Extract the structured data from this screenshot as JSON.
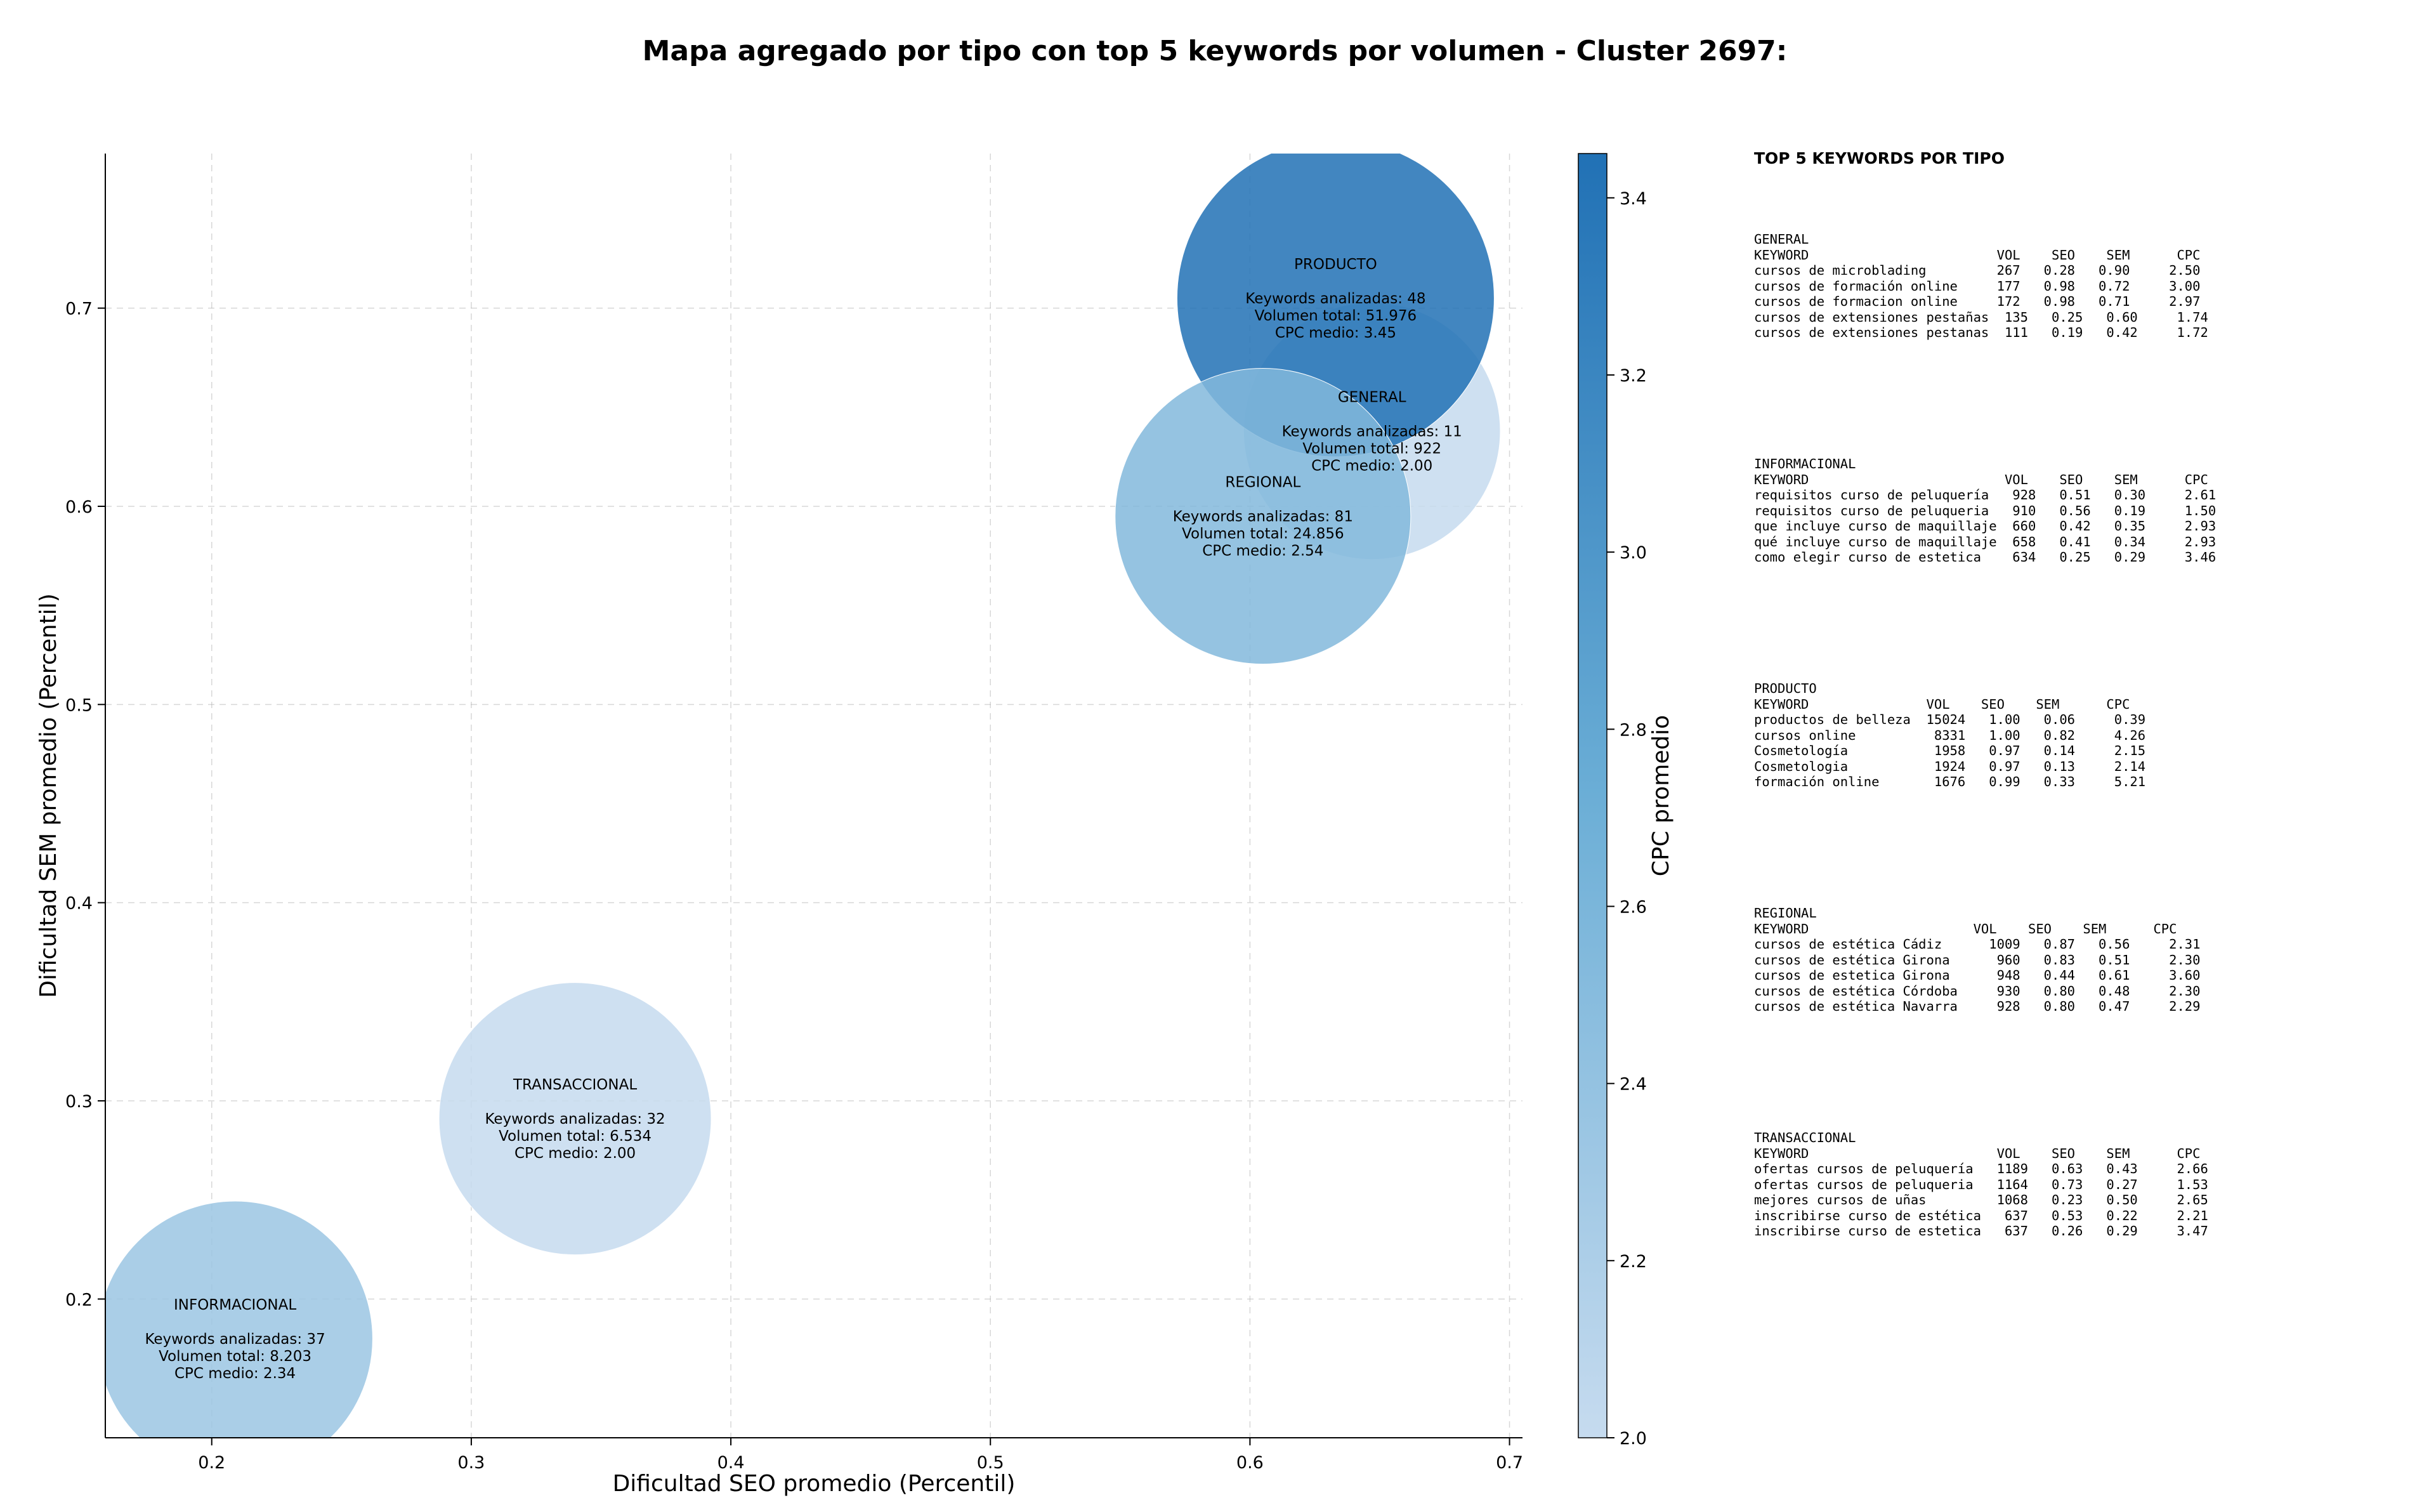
{
  "title": "Mapa agregado por tipo con top 5 keywords por volumen - Cluster 2697:",
  "chart_data": {
    "type": "scatter",
    "subtype": "bubble",
    "xlabel": "Dificultad SEO promedio (Percentil)",
    "ylabel": "Dificultad SEM promedio (Percentil)",
    "xlim": [
      0.159,
      0.705
    ],
    "ylim": [
      0.13,
      0.778
    ],
    "xticks": [
      "0.2",
      "0.3",
      "0.4",
      "0.5",
      "0.6",
      "0.7"
    ],
    "yticks": [
      "0.2",
      "0.3",
      "0.4",
      "0.5",
      "0.6",
      "0.7"
    ],
    "grid": true,
    "colorbar": {
      "label": "CPC promedio",
      "min": 2.0,
      "max": 3.45,
      "ticks": [
        "2.0",
        "2.2",
        "2.4",
        "2.6",
        "2.8",
        "3.0",
        "3.2",
        "3.4"
      ],
      "colormap": "Blues",
      "color_low": "#c6dbef",
      "color_high": "#2171b5"
    },
    "points": [
      {
        "type": "GENERAL",
        "x": 0.647,
        "y": 0.638,
        "keywords": 11,
        "volume": 922,
        "cpc": 2.0,
        "lines": [
          "GENERAL",
          "",
          "Keywords analizadas: 11",
          "Volumen total: 922",
          "CPC medio: 2.00"
        ]
      },
      {
        "type": "PRODUCTO",
        "x": 0.633,
        "y": 0.705,
        "keywords": 48,
        "volume": 51976,
        "cpc": 3.45,
        "lines": [
          "PRODUCTO",
          "",
          "Keywords analizadas: 48",
          "Volumen total: 51.976",
          "CPC medio: 3.45"
        ]
      },
      {
        "type": "TRANSACCIONAL",
        "x": 0.34,
        "y": 0.291,
        "keywords": 32,
        "volume": 6534,
        "cpc": 2.0,
        "lines": [
          "TRANSACCIONAL",
          "",
          "Keywords analizadas: 32",
          "Volumen total: 6.534",
          "CPC medio: 2.00"
        ]
      },
      {
        "type": "INFORMACIONAL",
        "x": 0.209,
        "y": 0.18,
        "keywords": 37,
        "volume": 8203,
        "cpc": 2.34,
        "lines": [
          "INFORMACIONAL",
          "",
          "Keywords analizadas: 37",
          "Volumen total: 8.203",
          "CPC medio: 2.34"
        ]
      },
      {
        "type": "REGIONAL",
        "x": 0.605,
        "y": 0.595,
        "keywords": 81,
        "volume": 24856,
        "cpc": 2.54,
        "lines": [
          "REGIONAL",
          "",
          "Keywords analizadas: 81",
          "Volumen total: 24.856",
          "CPC medio: 2.54"
        ]
      }
    ]
  },
  "tables": {
    "heading": "TOP 5 KEYWORDS POR TIPO",
    "blocks": [
      {
        "lines": [
          "GENERAL",
          "KEYWORD                        VOL    SEO    SEM      CPC",
          "cursos de microblading         267   0.28   0.90     2.50",
          "cursos de formación online     177   0.98   0.72     3.00",
          "cursos de formacion online     172   0.98   0.71     2.97",
          "cursos de extensiones pestañas  135   0.25   0.60     1.74",
          "cursos de extensiones pestanas  111   0.19   0.42     1.72"
        ]
      },
      {
        "lines": [
          "INFORMACIONAL",
          "KEYWORD                         VOL    SEO    SEM      CPC",
          "requisitos curso de peluquería   928   0.51   0.30     2.61",
          "requisitos curso de peluqueria   910   0.56   0.19     1.50",
          "que incluye curso de maquillaje  660   0.42   0.35     2.93",
          "qué incluye curso de maquillaje  658   0.41   0.34     2.93",
          "como elegir curso de estetica    634   0.25   0.29     3.46"
        ]
      },
      {
        "lines": [
          "PRODUCTO",
          "KEYWORD               VOL    SEO    SEM      CPC",
          "productos de belleza  15024   1.00   0.06     0.39",
          "cursos online          8331   1.00   0.82     4.26",
          "Cosmetología           1958   0.97   0.14     2.15",
          "Cosmetologia           1924   0.97   0.13     2.14",
          "formación online       1676   0.99   0.33     5.21"
        ]
      },
      {
        "lines": [
          "REGIONAL",
          "KEYWORD                     VOL    SEO    SEM      CPC",
          "cursos de estética Cádiz      1009   0.87   0.56     2.31",
          "cursos de estética Girona      960   0.83   0.51     2.30",
          "cursos de estetica Girona      948   0.44   0.61     3.60",
          "cursos de estética Córdoba     930   0.80   0.48     2.30",
          "cursos de estética Navarra     928   0.80   0.47     2.29"
        ]
      },
      {
        "lines": [
          "TRANSACCIONAL",
          "KEYWORD                        VOL    SEO    SEM      CPC",
          "ofertas cursos de peluquería   1189   0.63   0.43     2.66",
          "ofertas cursos de peluqueria   1164   0.73   0.27     1.53",
          "mejores cursos de uñas         1068   0.23   0.50     2.65",
          "inscribirse curso de estética   637   0.53   0.22     2.21",
          "inscribirse curso de estetica   637   0.26   0.29     3.47"
        ]
      }
    ]
  }
}
